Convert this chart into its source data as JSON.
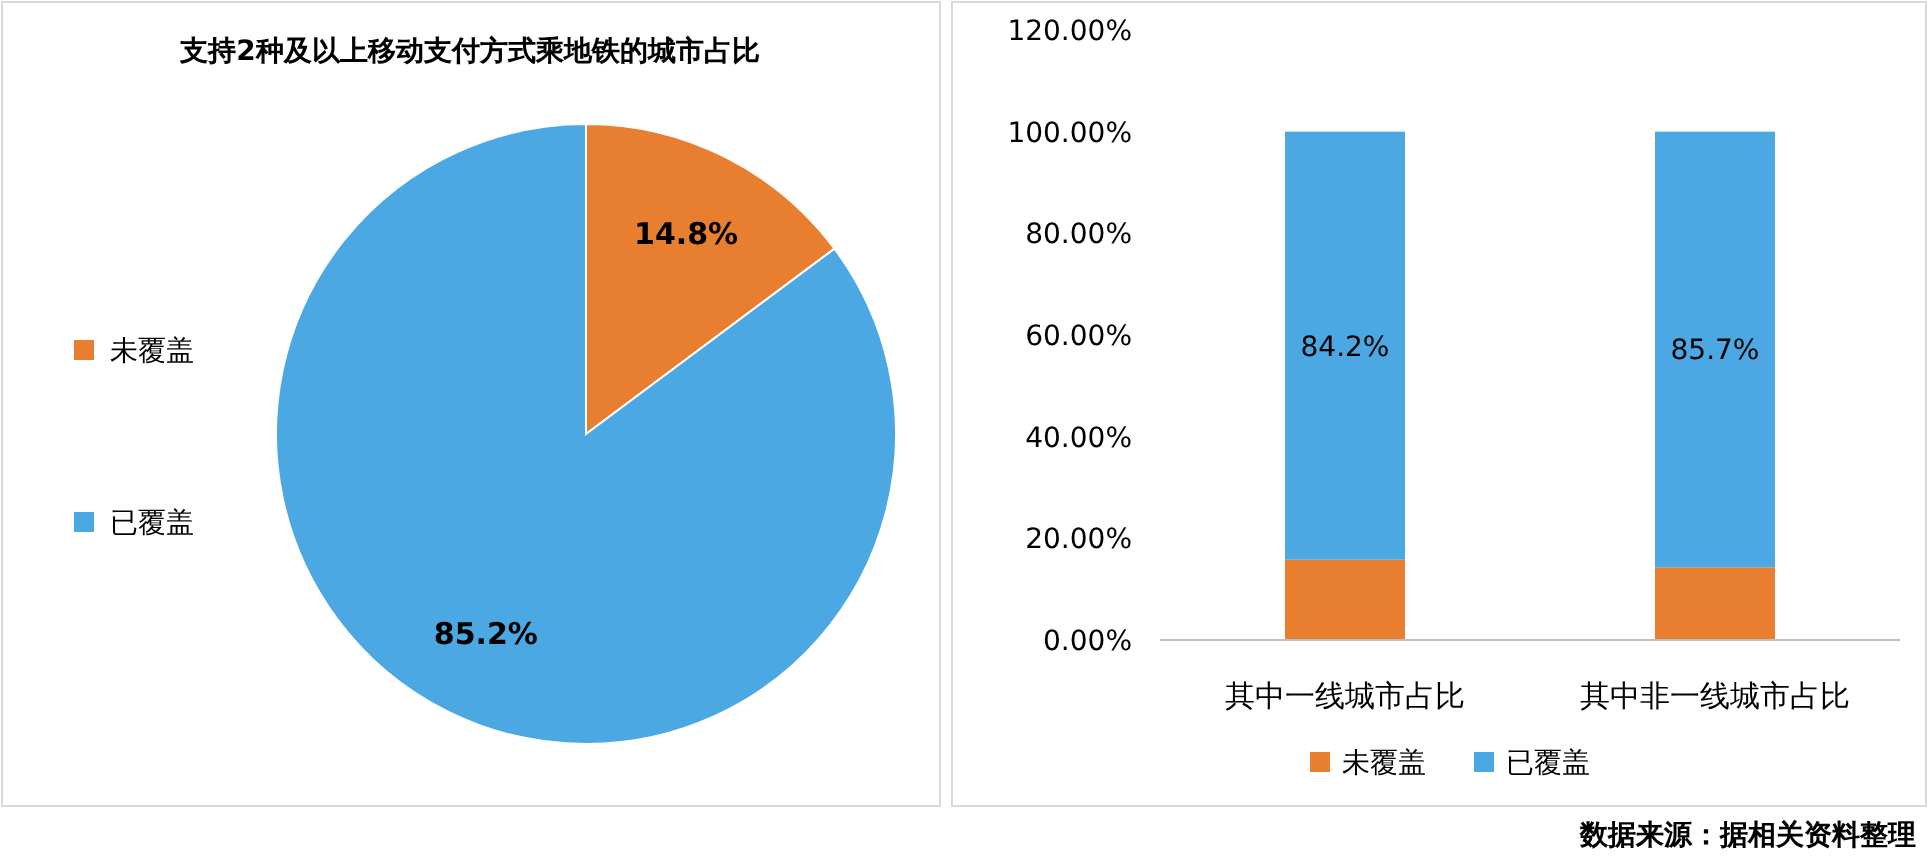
{
  "chart_data": [
    {
      "type": "pie",
      "title": "支持2种及以上移动支付方式乘地铁的城市占比",
      "categories": [
        "未覆盖",
        "已覆盖"
      ],
      "values": [
        14.8,
        85.2
      ],
      "colors": [
        "#e87e30",
        "#4ba8e2"
      ],
      "value_labels": [
        "14.8%",
        "85.2%"
      ],
      "legend": "left"
    },
    {
      "type": "bar",
      "stacked": true,
      "categories": [
        "其中一线城市占比",
        "其中非一线城市占比"
      ],
      "series": [
        {
          "name": "未覆盖",
          "color": "#e87e30",
          "values": [
            15.8,
            14.3
          ]
        },
        {
          "name": "已覆盖",
          "color": "#4ba8e2",
          "values": [
            84.2,
            85.7
          ],
          "value_labels": [
            "84.2%",
            "85.7%"
          ]
        }
      ],
      "ylim": [
        0,
        120
      ],
      "yticks": [
        {
          "value": 0,
          "label": "0.00%"
        },
        {
          "value": 20,
          "label": "20.00%"
        },
        {
          "value": 40,
          "label": "40.00%"
        },
        {
          "value": 60,
          "label": "60.00%"
        },
        {
          "value": 80,
          "label": "80.00%"
        },
        {
          "value": 100,
          "label": "100.00%"
        },
        {
          "value": 120,
          "label": "120.00%"
        }
      ],
      "legend": "bottom",
      "annotations": [
        "数据来源：据相关资料整理"
      ]
    }
  ]
}
